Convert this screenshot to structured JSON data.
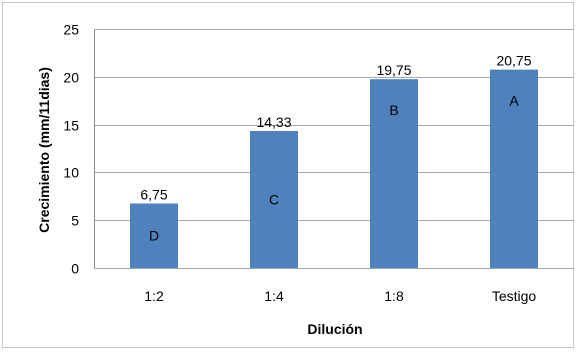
{
  "chart_data": {
    "type": "bar",
    "categories": [
      "1:2",
      "1:4",
      "1:8",
      "Testigo"
    ],
    "values": [
      6.75,
      14.33,
      19.75,
      20.75
    ],
    "data_labels": [
      "6,75",
      "14,33",
      "19,75",
      "20,75"
    ],
    "group_letters": [
      "D",
      "C",
      "B",
      "A"
    ],
    "xlabel": "Dilución",
    "ylabel": "Crecimiento (mm/11dias)",
    "ylim": [
      0,
      25
    ],
    "yticks": [
      0,
      5,
      10,
      15,
      20,
      25
    ],
    "grid": true,
    "legend": "none",
    "bar_color": "#4f81bd",
    "grid_color": "#a6a6a6"
  }
}
